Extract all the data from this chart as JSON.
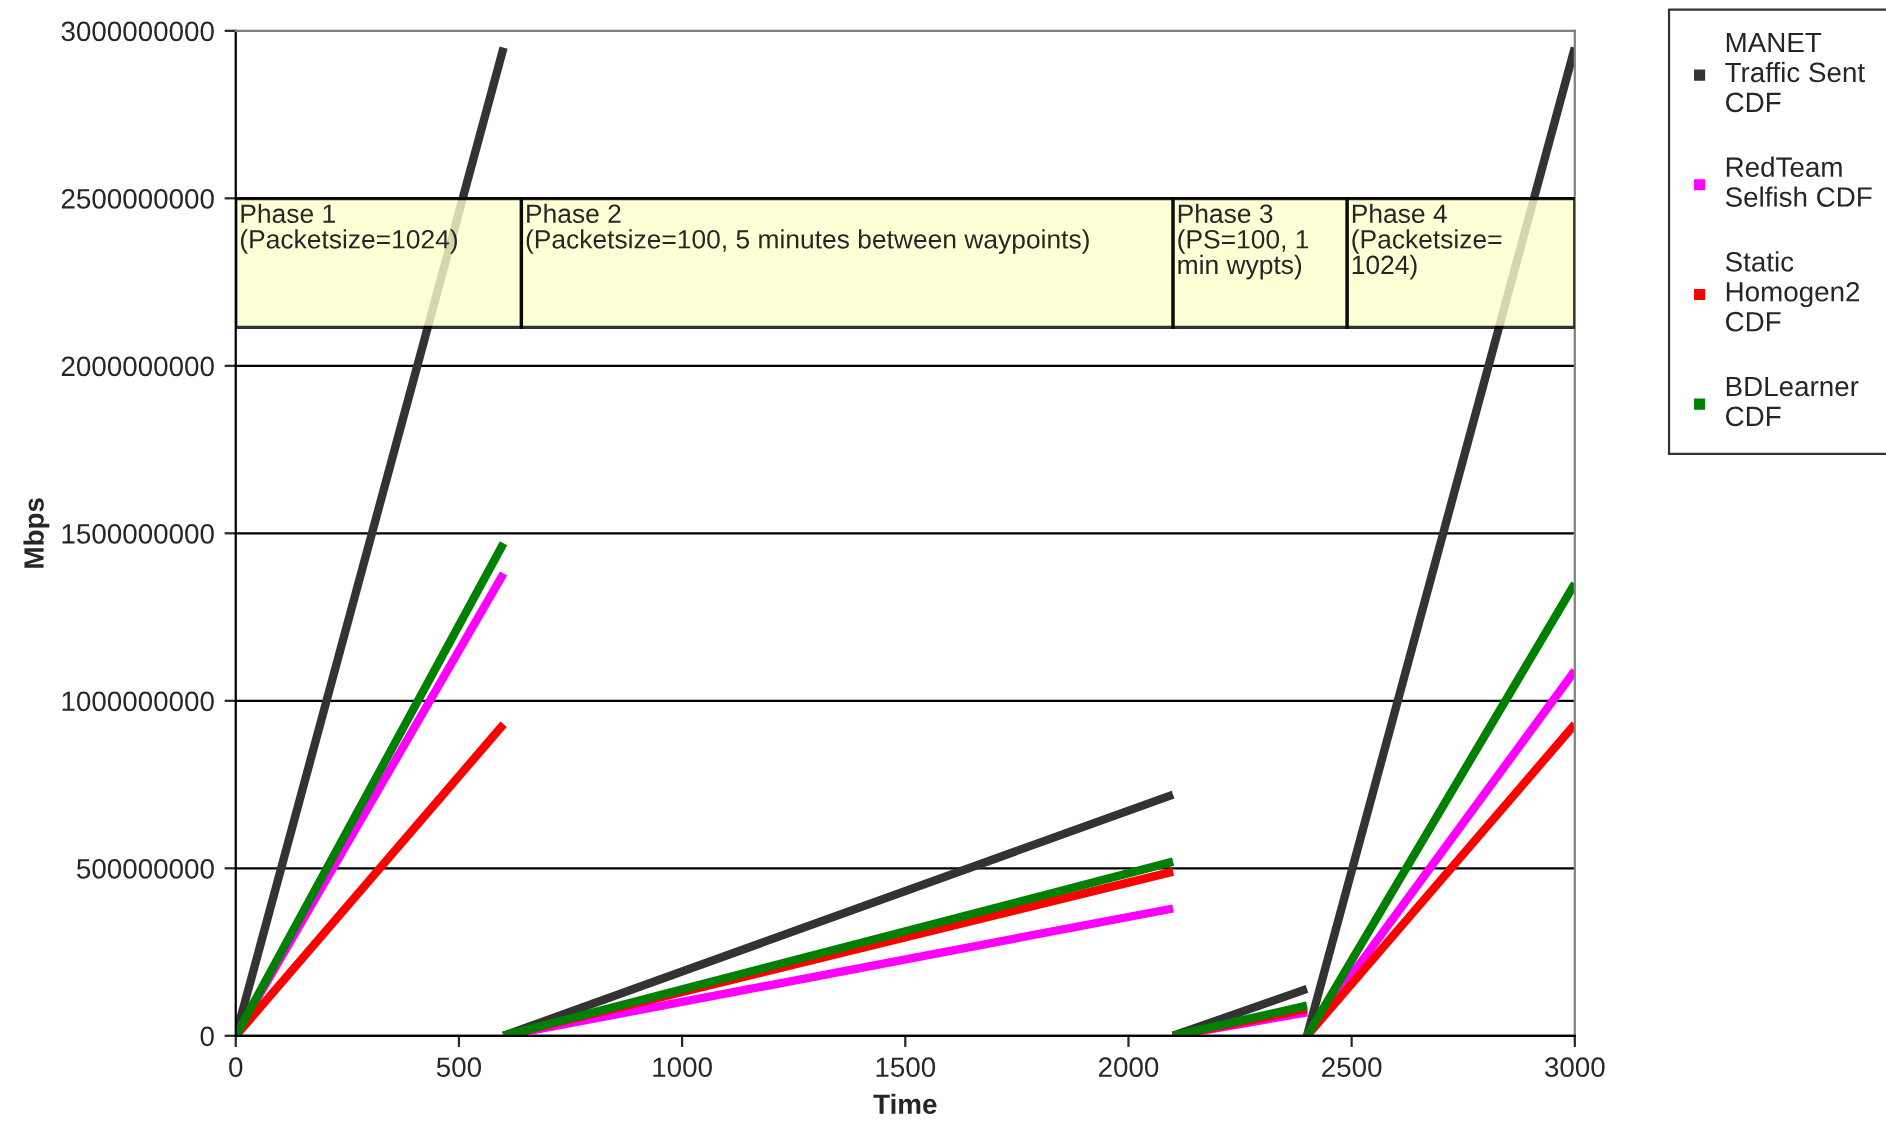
{
  "chart_data": {
    "type": "line",
    "xlabel": "Time",
    "ylabel": "Mbps",
    "x": [
      0,
      600,
      null,
      600,
      2100,
      null,
      2100,
      2400,
      null,
      2400,
      3000
    ],
    "series": [
      {
        "name": "MANET\nTraffic Sent\nCDF",
        "color": "#333333",
        "values": [
          0,
          2950000000,
          null,
          0,
          720000000,
          null,
          0,
          140000000,
          null,
          0,
          2950000000
        ]
      },
      {
        "name": "RedTeam\nSelfish CDF",
        "color": "#ff00ff",
        "values": [
          0,
          1380000000,
          null,
          0,
          380000000,
          null,
          0,
          70000000,
          null,
          0,
          1090000000
        ]
      },
      {
        "name": "Static\nHomogen2\nCDF",
        "color": "#ff0000",
        "values": [
          0,
          930000000,
          null,
          0,
          490000000,
          null,
          0,
          80000000,
          null,
          0,
          930000000
        ]
      },
      {
        "name": "BDLearner\nCDF",
        "color": "#008000",
        "values": [
          0,
          1470000000,
          null,
          0,
          520000000,
          null,
          0,
          90000000,
          null,
          0,
          1350000000
        ]
      }
    ],
    "bands": [
      {
        "axis": "x",
        "from": 0,
        "to": 640,
        "label": "Phase 1\n(Packetsize=1024)",
        "color": "#ffffcc"
      },
      {
        "axis": "x",
        "from": 640,
        "to": 2100,
        "label": "Phase 2\n(Packetsize=100, 5 minutes between waypoints)",
        "color": "#ffffcc"
      },
      {
        "axis": "x",
        "from": 2100,
        "to": 2490,
        "label": "Phase 3\n(PS=100, 1\nmin wypts)",
        "color": "#ffffcc"
      },
      {
        "axis": "x",
        "from": 2490,
        "to": 3000,
        "label": "Phase 4\n(Packetsize=\n1024)",
        "color": "#ffffcc"
      }
    ],
    "xlim": [
      0,
      3000
    ],
    "xticks": [
      0,
      500,
      1000,
      1500,
      2000,
      2500,
      3000
    ],
    "ylim": [
      0,
      3000000000
    ],
    "yticks": [
      0,
      500000000,
      1000000000,
      1500000000,
      2000000000,
      2500000000,
      3000000000
    ],
    "grid": "y",
    "legend": "right"
  }
}
